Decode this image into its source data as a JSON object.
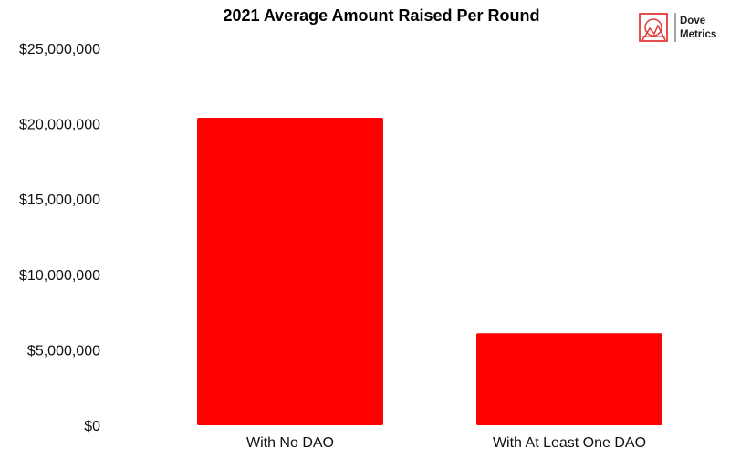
{
  "chart_data": {
    "type": "bar",
    "title": "2021 Average Amount Raised Per Round",
    "xlabel": "",
    "ylabel": "",
    "categories": [
      "With No DAO",
      "With At Least One DAO"
    ],
    "values": [
      20400000,
      6100000
    ],
    "ylim": [
      0,
      25000000
    ],
    "yticks": [
      0,
      5000000,
      10000000,
      15000000,
      20000000,
      25000000
    ],
    "ytick_labels": [
      "$0",
      "$5,000,000",
      "$10,000,000",
      "$15,000,000",
      "$20,000,000",
      "$25,000,000"
    ],
    "grid": false,
    "legend": "none",
    "bar_color": "#ff0000"
  },
  "logo": {
    "icon": "dove-metrics-logo-icon",
    "line1": "Dove",
    "line2": "Metrics",
    "color": "#e23b3b"
  }
}
